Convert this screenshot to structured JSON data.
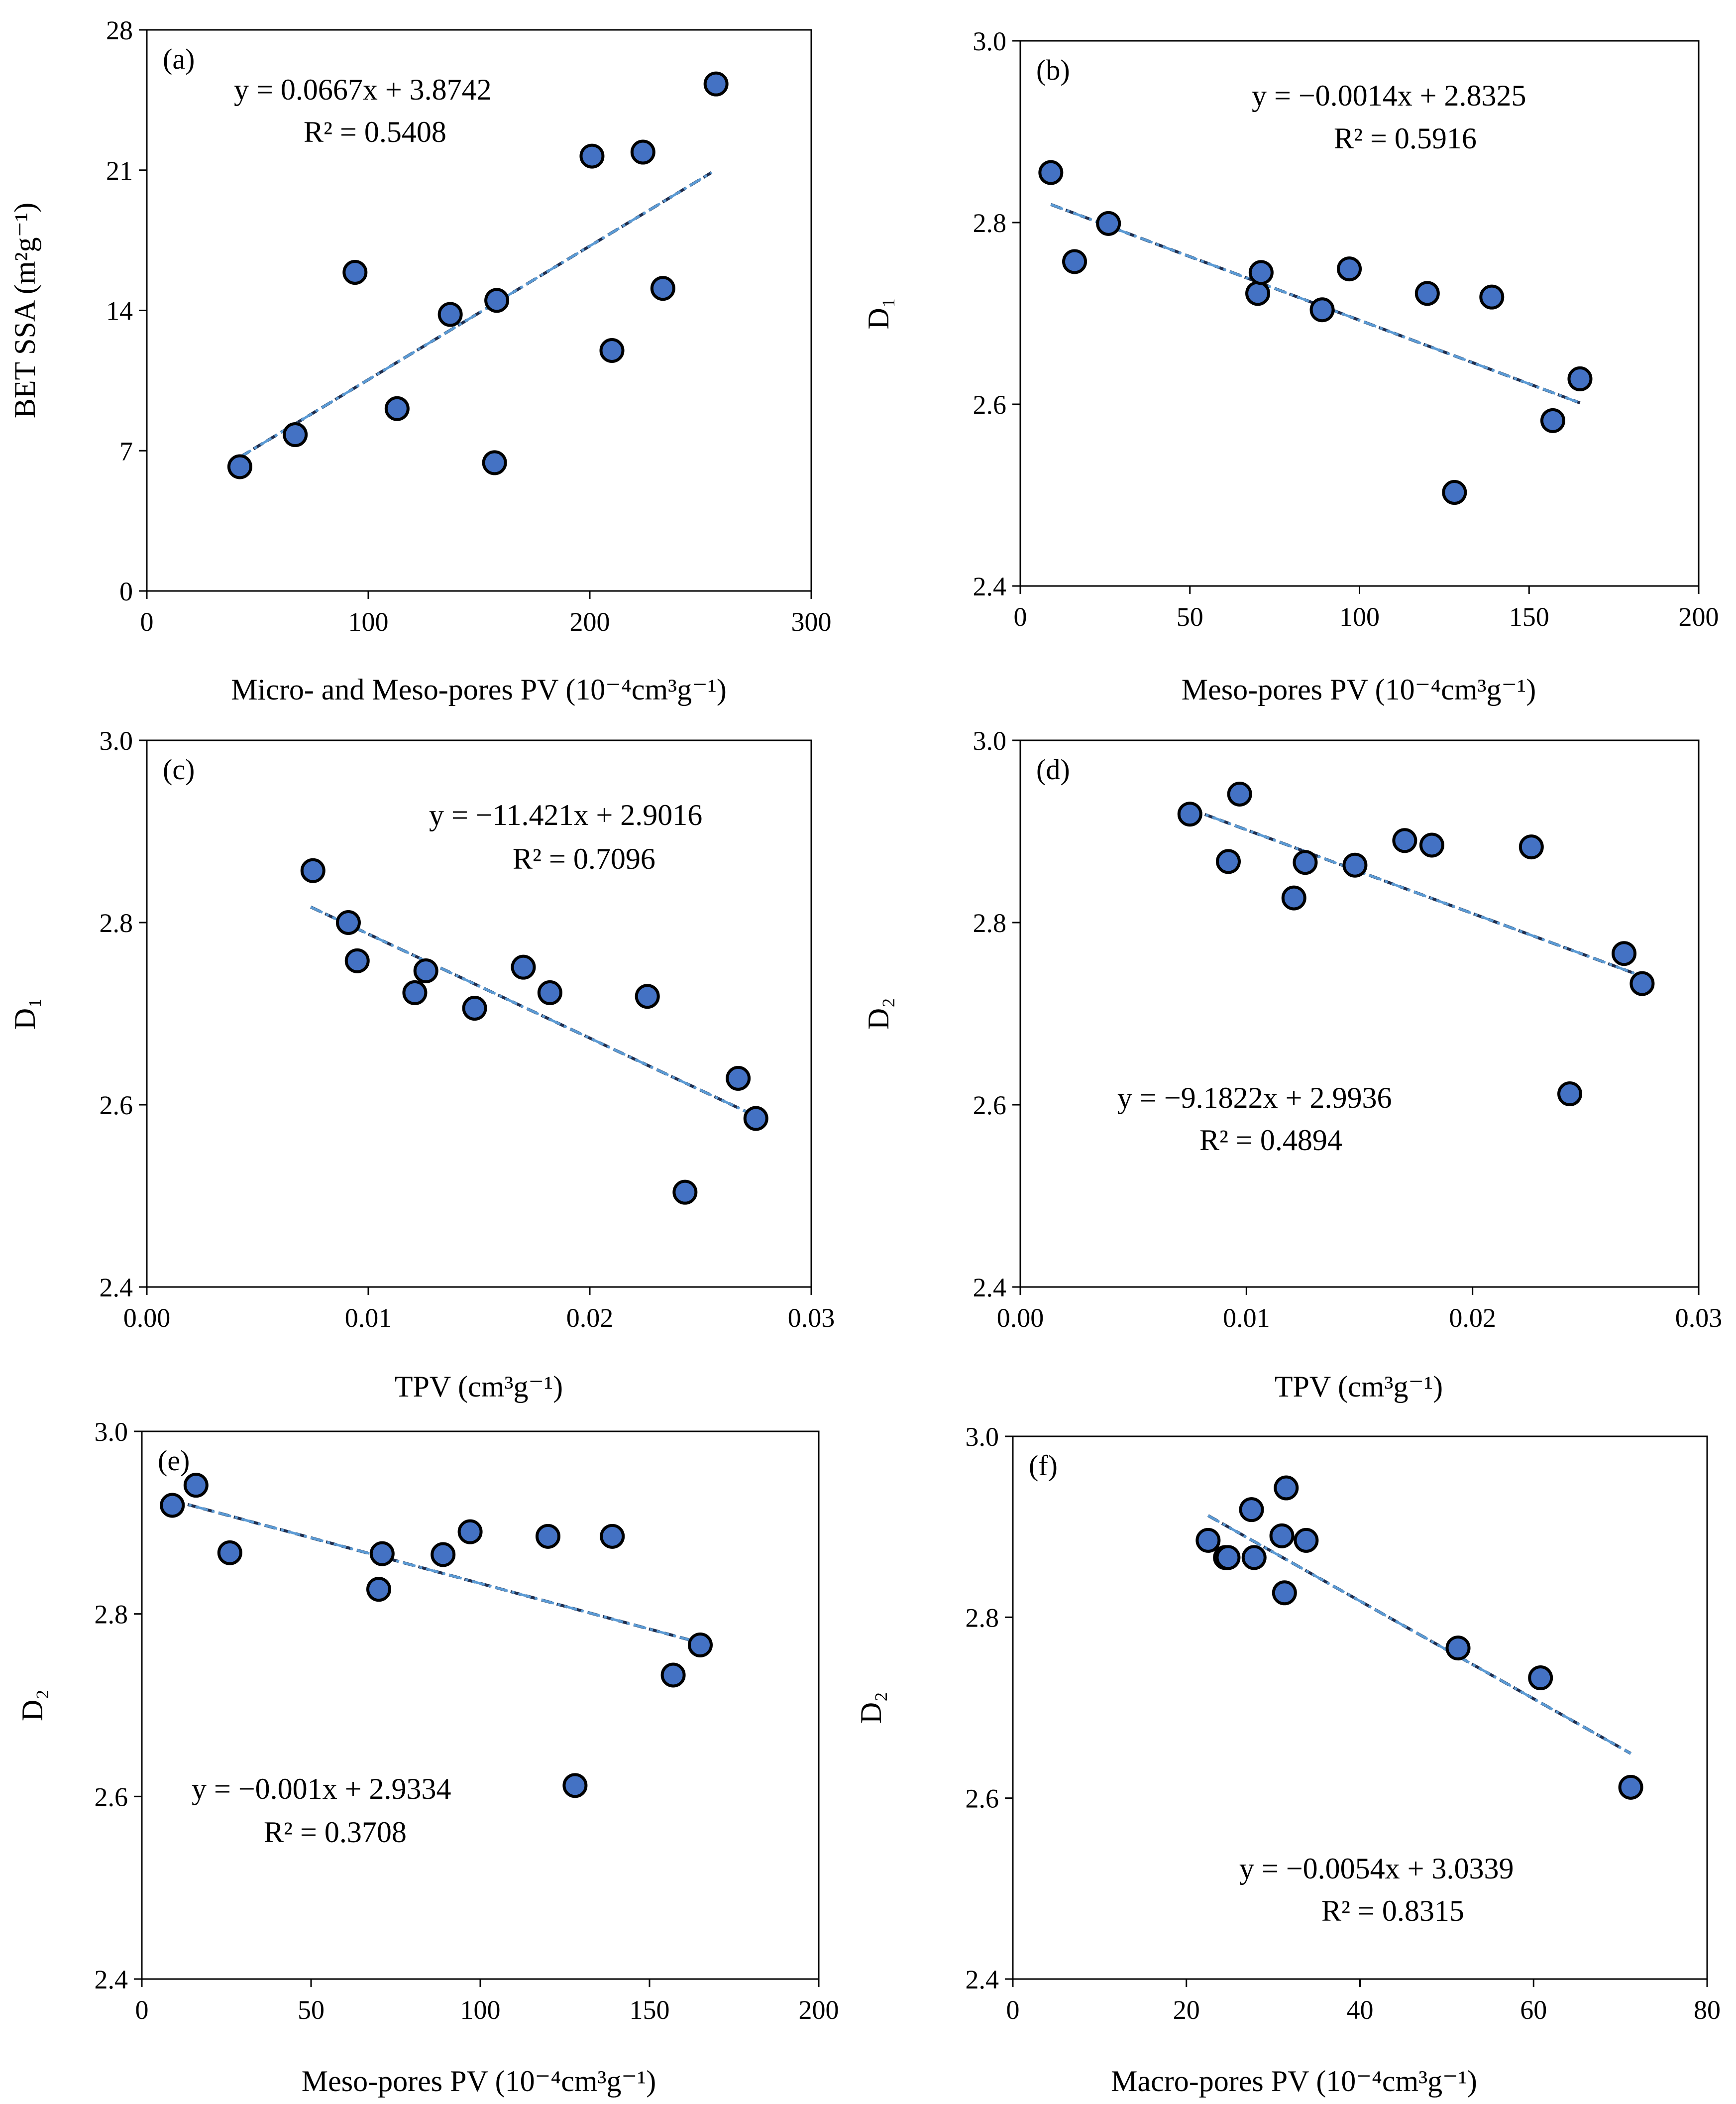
{
  "figure": {
    "colors": {
      "point_fill": "#4472C4",
      "point_stroke": "#000000",
      "trend_line": "#5B9BD5",
      "trend_line_dark": "#1F2D4D",
      "frame": "#000000"
    }
  },
  "chart_data": [
    {
      "panel": "(a)",
      "type": "scatter",
      "xlabel": "Micro- and Meso-pores PV (10⁻⁴cm³g⁻¹)",
      "ylabel": "BET SSA (m²g⁻¹)",
      "xlim": [
        0,
        300
      ],
      "ylim": [
        0,
        28
      ],
      "xticks": [
        0,
        100,
        200,
        300
      ],
      "yticks": [
        0,
        7,
        14,
        21,
        28
      ],
      "xtick_labels": [
        "0",
        "100",
        "200",
        "300"
      ],
      "ytick_labels": [
        "0",
        "7",
        "14",
        "21",
        "28"
      ],
      "points": [
        [
          42,
          6.2
        ],
        [
          67,
          7.8
        ],
        [
          94,
          15.9
        ],
        [
          113,
          9.1
        ],
        [
          137,
          13.8
        ],
        [
          158,
          14.5
        ],
        [
          157,
          6.4
        ],
        [
          201,
          21.7
        ],
        [
          210,
          12.0
        ],
        [
          224,
          21.9
        ],
        [
          233,
          15.1
        ],
        [
          257,
          25.3
        ]
      ],
      "trendline": {
        "slope": 0.0667,
        "intercept": 3.8742,
        "x_range": [
          42,
          255
        ]
      },
      "equation": "y = 0.0667x + 3.8742",
      "r2": "R² = 0.5408"
    },
    {
      "panel": "(b)",
      "type": "scatter",
      "xlabel": "Meso-pores PV (10⁻⁴cm³g⁻¹)",
      "ylabel": "D₁",
      "xlim": [
        0,
        200
      ],
      "ylim": [
        2.4,
        3.0
      ],
      "xticks": [
        0,
        50,
        100,
        150,
        200
      ],
      "yticks": [
        2.4,
        2.6,
        2.8,
        3.0
      ],
      "xtick_labels": [
        "0",
        "50",
        "100",
        "150",
        "200"
      ],
      "ytick_labels": [
        "2.4",
        "2.6",
        "2.8",
        "3.0"
      ],
      "points": [
        [
          9,
          2.855
        ],
        [
          16,
          2.757
        ],
        [
          26,
          2.799
        ],
        [
          70,
          2.722
        ],
        [
          71,
          2.745
        ],
        [
          89,
          2.704
        ],
        [
          97,
          2.749
        ],
        [
          120,
          2.722
        ],
        [
          139,
          2.718
        ],
        [
          128,
          2.503
        ],
        [
          157,
          2.582
        ],
        [
          165,
          2.628
        ]
      ],
      "trendline": {
        "slope": -0.0014,
        "intercept": 2.8325,
        "x_range": [
          9,
          165
        ]
      },
      "equation": "y = −0.0014x + 2.8325",
      "r2": "R² = 0.5916"
    },
    {
      "panel": "(c)",
      "type": "scatter",
      "xlabel": "TPV (cm³g⁻¹)",
      "ylabel": "D₁",
      "xlim": [
        0,
        0.03
      ],
      "ylim": [
        2.4,
        3.0
      ],
      "xticks": [
        0,
        0.01,
        0.02,
        0.03
      ],
      "yticks": [
        2.4,
        2.6,
        2.8,
        3.0
      ],
      "xtick_labels": [
        "0.00",
        "0.01",
        "0.02",
        "0.03"
      ],
      "ytick_labels": [
        "2.4",
        "2.6",
        "2.8",
        "3.0"
      ],
      "points": [
        [
          0.0075,
          2.857
        ],
        [
          0.0091,
          2.8
        ],
        [
          0.0095,
          2.758
        ],
        [
          0.0121,
          2.723
        ],
        [
          0.0126,
          2.747
        ],
        [
          0.0148,
          2.706
        ],
        [
          0.017,
          2.751
        ],
        [
          0.0182,
          2.723
        ],
        [
          0.0226,
          2.719
        ],
        [
          0.0243,
          2.504
        ],
        [
          0.0267,
          2.629
        ],
        [
          0.0275,
          2.585
        ]
      ],
      "trendline": {
        "slope": -11.421,
        "intercept": 2.9016,
        "x_range": [
          0.0074,
          0.0275
        ]
      },
      "equation": "y = −11.421x + 2.9016",
      "r2": "R² = 0.7096"
    },
    {
      "panel": "(d)",
      "type": "scatter",
      "xlabel": "TPV (cm³g⁻¹)",
      "ylabel": "D₂",
      "xlim": [
        0,
        0.03
      ],
      "ylim": [
        2.4,
        3.0
      ],
      "xticks": [
        0,
        0.01,
        0.02,
        0.03
      ],
      "yticks": [
        2.4,
        2.6,
        2.8,
        3.0
      ],
      "xtick_labels": [
        "0.00",
        "0.01",
        "0.02",
        "0.03"
      ],
      "ytick_labels": [
        "2.4",
        "2.6",
        "2.8",
        "3.0"
      ],
      "points": [
        [
          0.0075,
          2.919
        ],
        [
          0.0092,
          2.867
        ],
        [
          0.0097,
          2.941
        ],
        [
          0.0121,
          2.827
        ],
        [
          0.0126,
          2.866
        ],
        [
          0.0148,
          2.863
        ],
        [
          0.017,
          2.89
        ],
        [
          0.0182,
          2.885
        ],
        [
          0.0226,
          2.883
        ],
        [
          0.0243,
          2.612
        ],
        [
          0.0267,
          2.766
        ],
        [
          0.0275,
          2.733
        ]
      ],
      "trendline": {
        "slope": -9.1822,
        "intercept": 2.9936,
        "x_range": [
          0.0075,
          0.0275
        ]
      },
      "equation": "y = −9.1822x + 2.9936",
      "r2": "R² = 0.4894"
    },
    {
      "panel": "(e)",
      "type": "scatter",
      "xlabel": "Meso-pores PV (10⁻⁴cm³g⁻¹)",
      "ylabel": "D₂",
      "xlim": [
        0,
        200
      ],
      "ylim": [
        2.4,
        3.0
      ],
      "xticks": [
        0,
        50,
        100,
        150,
        200
      ],
      "yticks": [
        2.4,
        2.6,
        2.8,
        3.0
      ],
      "xtick_labels": [
        "0",
        "50",
        "100",
        "150",
        "200"
      ],
      "ytick_labels": [
        "2.4",
        "2.6",
        "2.8",
        "3.0"
      ],
      "points": [
        [
          9,
          2.919
        ],
        [
          16,
          2.941
        ],
        [
          26,
          2.867
        ],
        [
          70,
          2.827
        ],
        [
          71,
          2.866
        ],
        [
          89,
          2.865
        ],
        [
          97,
          2.89
        ],
        [
          120,
          2.885
        ],
        [
          139,
          2.885
        ],
        [
          128,
          2.612
        ],
        [
          157,
          2.733
        ],
        [
          165,
          2.766
        ]
      ],
      "trendline": {
        "slope": -0.001,
        "intercept": 2.9334,
        "x_range": [
          9,
          165
        ]
      },
      "equation": "y = −0.001x + 2.9334",
      "r2": "R² = 0.3708"
    },
    {
      "panel": "(f)",
      "type": "scatter",
      "xlabel": "Macro-pores PV (10⁻⁴cm³g⁻¹)",
      "ylabel": "D₂",
      "xlim": [
        0,
        80
      ],
      "ylim": [
        2.4,
        3.0
      ],
      "xticks": [
        0,
        20,
        40,
        60,
        80
      ],
      "yticks": [
        2.4,
        2.6,
        2.8,
        3.0
      ],
      "xtick_labels": [
        "0",
        "20",
        "40",
        "60",
        "80"
      ],
      "ytick_labels": [
        "2.4",
        "2.6",
        "2.8",
        "3.0"
      ],
      "points": [
        [
          22.5,
          2.885
        ],
        [
          24.5,
          2.866
        ],
        [
          24.8,
          2.866
        ],
        [
          27.5,
          2.919
        ],
        [
          27.8,
          2.866
        ],
        [
          31.0,
          2.89
        ],
        [
          31.3,
          2.827
        ],
        [
          31.5,
          2.943
        ],
        [
          33.8,
          2.885
        ],
        [
          51.3,
          2.766
        ],
        [
          60.8,
          2.733
        ],
        [
          71.2,
          2.612
        ]
      ],
      "trendline": {
        "slope": -0.0054,
        "intercept": 3.0339,
        "x_range": [
          22.5,
          71.2
        ]
      },
      "equation": "y = −0.0054x + 3.0339",
      "r2": "R² = 0.8315"
    }
  ]
}
